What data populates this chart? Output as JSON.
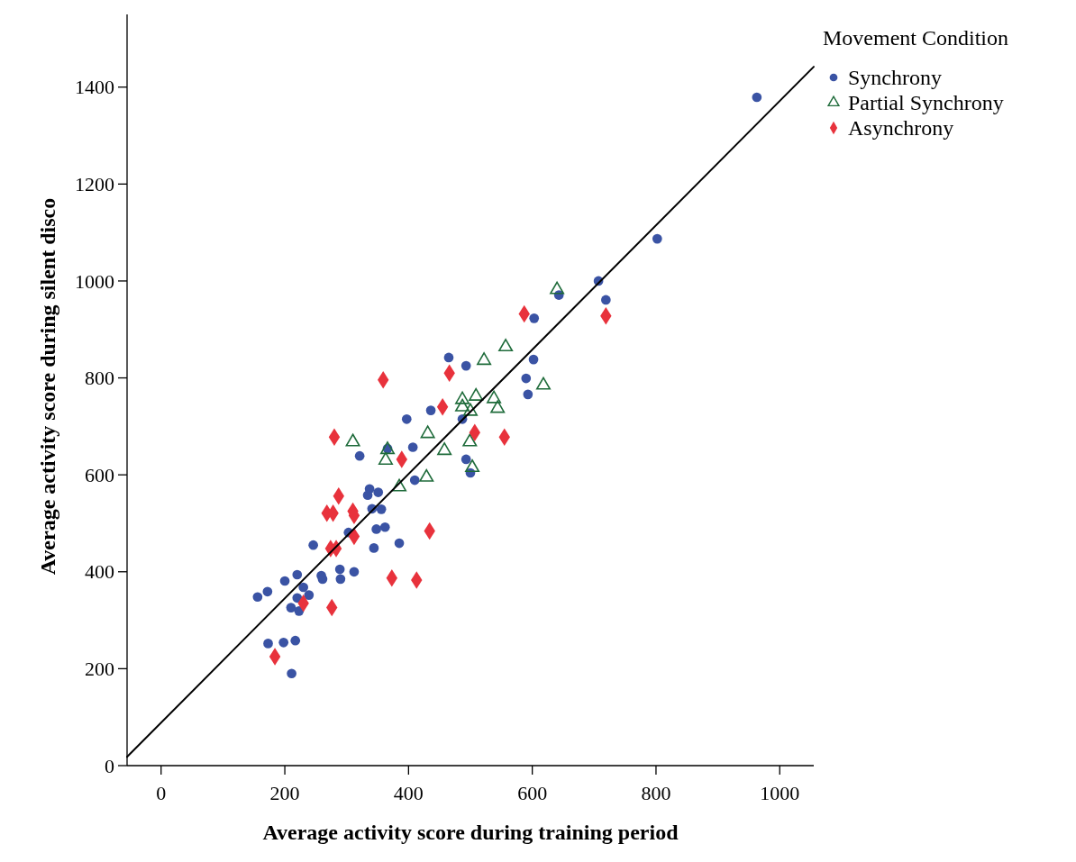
{
  "chart_data": {
    "type": "scatter",
    "xlabel": "Average activity score during training period",
    "ylabel": "Average activity score during silent disco",
    "legend_title": "Movement Condition",
    "legend": "top right",
    "xlim": [
      -55,
      1055
    ],
    "ylim": [
      0,
      1550
    ],
    "xticks": [
      0,
      200,
      400,
      600,
      800,
      1000
    ],
    "yticks": [
      0,
      200,
      400,
      600,
      800,
      1000,
      1200,
      1400
    ],
    "grid": false,
    "series": [
      {
        "name": "Synchrony",
        "color": "#3a53a4",
        "marker": "circle",
        "x": [
          963,
          802,
          707,
          719,
          643,
          603,
          465,
          493,
          602,
          590,
          593,
          436,
          487,
          397,
          321,
          366,
          407,
          493,
          500,
          410,
          337,
          351,
          334,
          341,
          356,
          348,
          362,
          303,
          246,
          344,
          385,
          289,
          312,
          259,
          261,
          290,
          220,
          200,
          172,
          156,
          230,
          239,
          220,
          210,
          223,
          173,
          198,
          217,
          211
        ],
        "values": [
          1379,
          1087,
          1000,
          961,
          971,
          923,
          842,
          825,
          838,
          799,
          766,
          733,
          715,
          715,
          639,
          654,
          657,
          632,
          604,
          589,
          571,
          564,
          558,
          530,
          529,
          488,
          492,
          481,
          455,
          449,
          459,
          405,
          400,
          392,
          385,
          385,
          394,
          381,
          359,
          348,
          368,
          352,
          346,
          326,
          319,
          252,
          254,
          258,
          190
        ]
      },
      {
        "name": "Partial Synchrony",
        "color": "#1e6b3a",
        "marker": "triangle",
        "x": [
          640,
          557,
          522,
          618,
          487,
          509,
          538,
          544,
          487,
          500,
          431,
          499,
          458,
          310,
          366,
          363,
          503,
          429,
          385
        ],
        "values": [
          982,
          864,
          836,
          785,
          755,
          762,
          757,
          737,
          740,
          731,
          685,
          668,
          650,
          668,
          652,
          630,
          615,
          595,
          575
        ]
      },
      {
        "name": "Asynchrony",
        "color": "#e8323c",
        "marker": "diamond",
        "x": [
          587,
          719,
          466,
          359,
          455,
          507,
          555,
          280,
          389,
          287,
          268,
          278,
          310,
          312,
          434,
          312,
          274,
          283,
          373,
          413,
          230,
          276,
          184
        ],
        "values": [
          932,
          928,
          810,
          796,
          740,
          687,
          678,
          678,
          632,
          556,
          521,
          521,
          525,
          516,
          484,
          473,
          448,
          448,
          387,
          383,
          335,
          326,
          225
        ]
      },
      {
        "type": "line",
        "color": "#000000",
        "x": [
          -55,
          1055
        ],
        "values": [
          18,
          1442
        ]
      }
    ]
  }
}
